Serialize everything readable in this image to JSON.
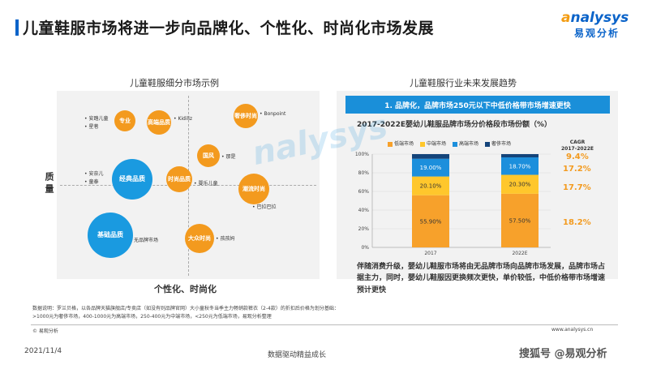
{
  "header": {
    "title": "儿童鞋服市场将进一步向品牌化、个性化、时尚化市场发展",
    "logo_en_a": "a",
    "logo_en_rest": "nalysys",
    "logo_cn": "易观分析"
  },
  "left": {
    "title": "儿童鞋服细分市场示例",
    "y_axis": "质量",
    "x_axis": "个性化、时尚化",
    "circles": {
      "zhuanye": "专业",
      "gaoduan": "高端品质",
      "shechi": "奢侈时尚",
      "guofeng": "国风",
      "jingdian": "经典品质",
      "shishang": "时尚品质",
      "chaoliu": "潮流时尚",
      "jichu": "基础品质",
      "dazhong": "大众时尚"
    },
    "brands": {
      "b1": "• 安踏儿童",
      "b2": "• 星巷",
      "b3": "• Kidiliz",
      "b4": "• Bonpoint",
      "b5": "• 那是",
      "b6": "• 安奈儿",
      "b7": "• 童泰",
      "b8": "• 婴乐儿童",
      "b9": "• 巴拉巴拉",
      "b10": "无品牌市场",
      "b11": "• 孩孩妈"
    }
  },
  "right": {
    "title": "儿童鞋服行业未来发展趋势",
    "banner": "1. 品牌化，品牌市场250元以下中低价格带市场增速更快",
    "chart_title": "2017-2022E婴幼儿鞋服品牌市场分价格段市场份额（%）",
    "cagr_head_1": "CAGR",
    "cagr_head_2": "2017-2022E",
    "description": "伴随消费升级，婴幼儿鞋服市场将由无品牌市场向品牌市场发展，品牌市场占据主力，同时，婴幼儿鞋服因更换频次更快，单价较低，中低价格带市场增速预计更快"
  },
  "chart_data": {
    "type": "bar",
    "stacked": true,
    "title": "2017-2022E婴幼儿鞋服品牌市场分价格段市场份额（%）",
    "categories": [
      "2017",
      "2022E"
    ],
    "y_ticks": [
      "100%",
      "80%",
      "60%",
      "40%",
      "20%",
      "0%"
    ],
    "ylim": [
      0,
      100
    ],
    "series": [
      {
        "name": "低端市场",
        "values": [
          55.9,
          57.5
        ],
        "labels": [
          "55.90%",
          "57.50%"
        ],
        "color": "#f7a12b"
      },
      {
        "name": "中端市场",
        "values": [
          20.1,
          20.3
        ],
        "labels": [
          "20.10%",
          "20.30%"
        ],
        "color": "#ffc72c"
      },
      {
        "name": "高端市场",
        "values": [
          19.0,
          18.7
        ],
        "labels": [
          "19.00%",
          "18.70%"
        ],
        "color": "#1c8fdc"
      },
      {
        "name": "奢侈市场",
        "values": [
          5.0,
          3.5
        ],
        "labels": [
          "",
          ""
        ],
        "color": "#14447a"
      }
    ],
    "cagr": [
      "9.4%",
      "17.2%",
      "17.7%",
      "18.2%"
    ]
  },
  "footer": {
    "note_1": "数据说明：罗兰贝格，以各品牌天猫旗舰店/专卖店（如没有则品牌官网）大小童秋冬当季主力畅销款裤衣（2-4款）的折扣后价格为划分基础：",
    "note_2": ">1000元为奢侈市场，400-1000元为高端市场，250-400元为中端市场，<250元为低端市场，易观分析整理",
    "source": "© 易观分析",
    "url": "www.analysys.cn",
    "date": "2021/11/4",
    "slogan": "数据驱动精益成长",
    "wm": "搜狐号 @易观分析"
  },
  "colors": {
    "accent": "#0a63c9",
    "orange": "#f39a1e",
    "blue": "#1a9ae0"
  }
}
